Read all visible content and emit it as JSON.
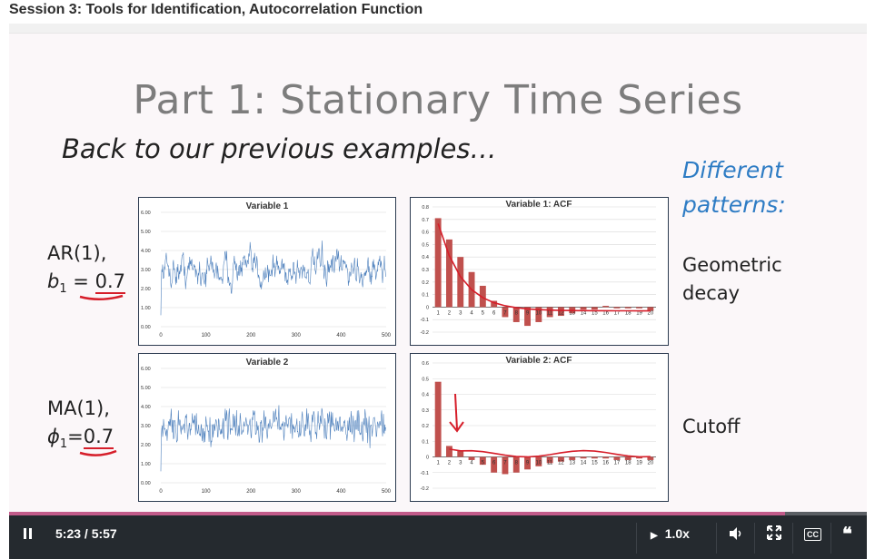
{
  "session": {
    "title": "Session 3: Tools for Identification, Autocorrelation Function"
  },
  "slide": {
    "title": "Part 1: Stationary Time Series",
    "subtitle": "Back to our previous examples…",
    "patterns_heading": {
      "line1": "Different",
      "line2": "patterns:"
    },
    "rows": [
      {
        "label_line1": "AR(1),",
        "param": "b",
        "sub": "1",
        "eq": " = ",
        "value": "0.7",
        "pattern_line1": "Geometric",
        "pattern_line2": "decay"
      },
      {
        "label_line1": "MA(1),",
        "param": "ϕ",
        "sub": "1",
        "eq": "=",
        "value": "0.7",
        "pattern_line1": "Cutoff",
        "pattern_line2": ""
      }
    ]
  },
  "chart_data": [
    {
      "type": "line",
      "title": "Variable 1",
      "x_ticks": [
        0,
        100,
        200,
        300,
        400,
        500
      ],
      "y_ticks": [
        "0.00",
        "1.00",
        "2.00",
        "3.00",
        "4.00",
        "5.00",
        "6.00"
      ],
      "xlim": [
        0,
        500
      ],
      "ylim": [
        0,
        6
      ],
      "series_color": "#4f81bd",
      "n_points": 500
    },
    {
      "type": "bar",
      "title": "Variable 1: ACF",
      "categories": [
        "1",
        "2",
        "3",
        "4",
        "5",
        "6",
        "7",
        "8",
        "9",
        "10",
        "11",
        "12",
        "13",
        "14",
        "15",
        "16",
        "17",
        "18",
        "19",
        "20"
      ],
      "values": [
        0.71,
        0.54,
        0.4,
        0.28,
        0.17,
        0.05,
        -0.08,
        -0.12,
        -0.15,
        -0.12,
        -0.08,
        -0.07,
        -0.05,
        -0.02,
        -0.02,
        0.01,
        -0.01,
        -0.01,
        -0.01,
        -0.03
      ],
      "y_ticks": [
        "0.8",
        "0.7",
        "0.6",
        "0.5",
        "0.4",
        "0.3",
        "0.2",
        "0.1",
        "0",
        "-0.1",
        "-0.2"
      ],
      "ylim": [
        -0.2,
        0.8
      ],
      "bar_color": "#c0504d"
    },
    {
      "type": "line",
      "title": "Variable 2",
      "x_ticks": [
        0,
        100,
        200,
        300,
        400,
        500
      ],
      "y_ticks": [
        "0.00",
        "1.00",
        "2.00",
        "3.00",
        "4.00",
        "5.00",
        "6.00"
      ],
      "xlim": [
        0,
        500
      ],
      "ylim": [
        0,
        6
      ],
      "series_color": "#4f81bd",
      "n_points": 500
    },
    {
      "type": "bar",
      "title": "Variable 2: ACF",
      "categories": [
        "1",
        "2",
        "3",
        "4",
        "5",
        "6",
        "7",
        "8",
        "9",
        "10",
        "11",
        "12",
        "13",
        "14",
        "15",
        "16",
        "17",
        "18",
        "19",
        "20"
      ],
      "values": [
        0.48,
        0.07,
        0.04,
        -0.02,
        -0.05,
        -0.1,
        -0.11,
        -0.1,
        -0.08,
        -0.06,
        -0.04,
        -0.03,
        -0.02,
        -0.01,
        -0.01,
        -0.01,
        -0.02,
        -0.02,
        -0.01,
        -0.02
      ],
      "y_ticks": [
        "0.6",
        "0.5",
        "0.4",
        "0.3",
        "0.2",
        "0.1",
        "0",
        "-0.1",
        "-0.2"
      ],
      "ylim": [
        -0.2,
        0.6
      ],
      "bar_color": "#c0504d"
    }
  ],
  "player": {
    "time": "5:23 / 5:57",
    "progress": 0.905,
    "speed": "1.0x",
    "cc_label": "CC",
    "icons": {
      "play_pause": "pause-icon",
      "speed": "play-triangle-icon",
      "volume": "volume-icon",
      "fullscreen": "fullscreen-icon",
      "cc": "closed-captions-icon",
      "transcript": "quote-icon"
    }
  }
}
